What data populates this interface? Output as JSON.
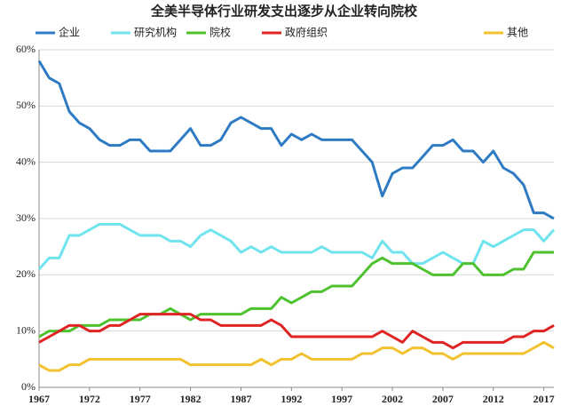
{
  "chart_data": {
    "type": "line",
    "title": "全美半导体行业研发支出逐步从企业转向院校",
    "x": [
      1967,
      1968,
      1969,
      1970,
      1971,
      1972,
      1973,
      1974,
      1975,
      1976,
      1977,
      1978,
      1979,
      1980,
      1981,
      1982,
      1983,
      1984,
      1985,
      1986,
      1987,
      1988,
      1989,
      1990,
      1991,
      1992,
      1993,
      1994,
      1995,
      1996,
      1997,
      1998,
      1999,
      2000,
      2001,
      2002,
      2003,
      2004,
      2005,
      2006,
      2007,
      2008,
      2009,
      2010,
      2011,
      2012,
      2013,
      2014,
      2015,
      2016,
      2017,
      2018
    ],
    "series": [
      {
        "name": "企业",
        "color": "#2e7bc4",
        "values": [
          58,
          55,
          54,
          49,
          47,
          46,
          44,
          43,
          43,
          44,
          44,
          42,
          42,
          42,
          44,
          46,
          43,
          43,
          44,
          47,
          48,
          47,
          46,
          46,
          43,
          45,
          44,
          45,
          44,
          44,
          44,
          44,
          42,
          40,
          34,
          38,
          39,
          39,
          41,
          43,
          43,
          44,
          42,
          42,
          40,
          42,
          39,
          38,
          36,
          31,
          31,
          30
        ]
      },
      {
        "name": "研究机构",
        "color": "#6fe3ee",
        "values": [
          21,
          23,
          23,
          27,
          27,
          28,
          29,
          29,
          29,
          28,
          27,
          27,
          27,
          26,
          26,
          25,
          27,
          28,
          27,
          26,
          24,
          25,
          24,
          25,
          24,
          24,
          24,
          24,
          25,
          24,
          24,
          24,
          24,
          23,
          26,
          24,
          24,
          22,
          22,
          23,
          24,
          23,
          22,
          22,
          26,
          25,
          26,
          27,
          28,
          28,
          26,
          28
        ]
      },
      {
        "name": "院校",
        "color": "#4dc22e",
        "values": [
          9,
          10,
          10,
          10,
          11,
          11,
          11,
          12,
          12,
          12,
          12,
          13,
          13,
          14,
          13,
          12,
          13,
          13,
          13,
          13,
          13,
          14,
          14,
          14,
          16,
          15,
          16,
          17,
          17,
          18,
          18,
          18,
          20,
          22,
          23,
          22,
          22,
          22,
          21,
          20,
          20,
          20,
          22,
          22,
          20,
          20,
          20,
          21,
          21,
          24,
          24,
          24
        ]
      },
      {
        "name": "政府组织",
        "color": "#e02424",
        "values": [
          8,
          9,
          10,
          11,
          11,
          10,
          10,
          11,
          11,
          12,
          13,
          13,
          13,
          13,
          13,
          13,
          12,
          12,
          11,
          11,
          11,
          11,
          11,
          12,
          11,
          9,
          9,
          9,
          9,
          9,
          9,
          9,
          9,
          9,
          10,
          9,
          8,
          10,
          9,
          8,
          8,
          7,
          8,
          8,
          8,
          8,
          8,
          9,
          9,
          10,
          10,
          11
        ]
      },
      {
        "name": "其他",
        "color": "#f2c12e",
        "values": [
          4,
          3,
          3,
          4,
          4,
          5,
          5,
          5,
          5,
          5,
          5,
          5,
          5,
          5,
          5,
          4,
          4,
          4,
          4,
          4,
          4,
          4,
          5,
          4,
          5,
          5,
          6,
          5,
          5,
          5,
          5,
          5,
          6,
          6,
          7,
          7,
          6,
          7,
          7,
          6,
          6,
          5,
          6,
          6,
          6,
          6,
          6,
          6,
          6,
          7,
          8,
          7
        ]
      }
    ],
    "xlim": [
      1967,
      2018
    ],
    "xticks": [
      1967,
      1972,
      1977,
      1982,
      1987,
      1992,
      1997,
      2002,
      2007,
      2012,
      2017
    ],
    "ylim": [
      0,
      60
    ],
    "yticks": [
      {
        "value": 0,
        "label": "0%"
      },
      {
        "value": 10,
        "label": "10%"
      },
      {
        "value": 20,
        "label": "20%"
      },
      {
        "value": 30,
        "label": "30%"
      },
      {
        "value": 40,
        "label": "40%"
      },
      {
        "value": 50,
        "label": "50%"
      },
      {
        "value": 60,
        "label": "60%"
      }
    ],
    "grid": true
  }
}
